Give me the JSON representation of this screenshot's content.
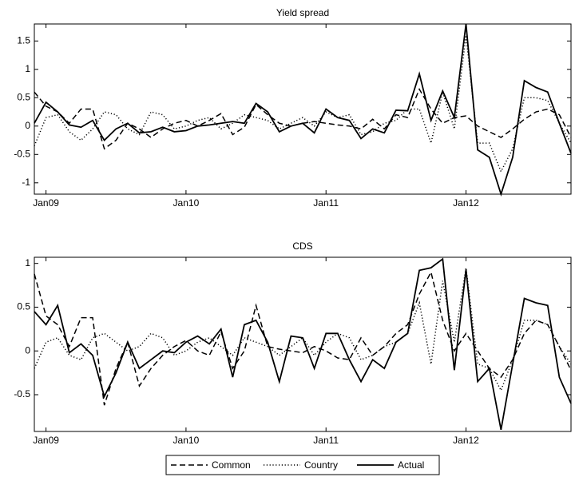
{
  "chart_data": [
    {
      "type": "line",
      "title": "Yield spread",
      "categories": [
        null,
        "Jan09",
        null,
        null,
        null,
        null,
        null,
        null,
        null,
        null,
        null,
        null,
        null,
        "Jan10",
        null,
        null,
        null,
        null,
        null,
        null,
        null,
        null,
        null,
        null,
        null,
        "Jan11",
        null,
        null,
        null,
        null,
        null,
        null,
        null,
        null,
        null,
        null,
        null,
        "Jan12",
        null,
        null,
        null,
        null,
        null,
        null,
        null,
        null,
        null
      ],
      "ylim": [
        -1.2,
        1.8
      ],
      "yticks": [
        -1,
        -0.5,
        0,
        0.5,
        1,
        1.5
      ],
      "series": [
        {
          "style": "dashed",
          "color": "#000000",
          "values": [
            0.6,
            0.35,
            0.25,
            0.05,
            0.3,
            0.3,
            -0.4,
            -0.25,
            0.05,
            -0.05,
            -0.2,
            -0.05,
            0.05,
            0.1,
            0.0,
            0.1,
            0.22,
            -0.15,
            -0.02,
            0.38,
            0.2,
            0.05,
            0.0,
            0.05,
            0.08,
            0.05,
            0.02,
            0.0,
            -0.05,
            0.12,
            -0.05,
            0.2,
            0.15,
            0.65,
            0.3,
            0.05,
            0.15,
            0.18,
            0.0,
            -0.1,
            -0.2,
            -0.05,
            0.12,
            0.25,
            0.3,
            0.2,
            -0.2
          ]
        },
        {
          "style": "dotted",
          "color": "#000000",
          "values": [
            -0.35,
            0.15,
            0.2,
            -0.1,
            -0.25,
            -0.05,
            0.25,
            0.2,
            -0.05,
            -0.15,
            0.25,
            0.2,
            -0.05,
            0.0,
            0.1,
            0.15,
            -0.05,
            0.05,
            0.2,
            0.15,
            0.1,
            -0.05,
            0.05,
            0.15,
            0.0,
            0.25,
            0.15,
            0.2,
            -0.15,
            -0.1,
            0.05,
            0.1,
            0.3,
            0.3,
            -0.3,
            0.6,
            -0.05,
            1.6,
            -0.3,
            -0.3,
            -0.8,
            -0.4,
            0.5,
            0.5,
            0.45,
            0.05,
            -0.3
          ]
        },
        {
          "style": "solid",
          "color": "#000000",
          "values": [
            0.05,
            0.42,
            0.25,
            0.02,
            -0.02,
            0.1,
            -0.25,
            -0.05,
            0.05,
            -0.12,
            -0.1,
            -0.02,
            -0.1,
            -0.08,
            0.0,
            0.02,
            0.05,
            0.08,
            0.05,
            0.4,
            0.25,
            -0.1,
            0.0,
            0.05,
            -0.12,
            0.3,
            0.15,
            0.1,
            -0.22,
            -0.05,
            -0.12,
            0.28,
            0.27,
            0.92,
            0.1,
            0.62,
            0.15,
            1.8,
            -0.42,
            -0.55,
            -1.2,
            -0.55,
            0.8,
            0.68,
            0.6,
            0.05,
            -0.48
          ]
        }
      ]
    },
    {
      "type": "line",
      "title": "CDS",
      "categories": [
        null,
        "Jan09",
        null,
        null,
        null,
        null,
        null,
        null,
        null,
        null,
        null,
        null,
        null,
        "Jan10",
        null,
        null,
        null,
        null,
        null,
        null,
        null,
        null,
        null,
        null,
        null,
        "Jan11",
        null,
        null,
        null,
        null,
        null,
        null,
        null,
        null,
        null,
        null,
        null,
        "Jan12",
        null,
        null,
        null,
        null,
        null,
        null,
        null,
        null,
        null
      ],
      "ylim": [
        -0.92,
        1.07
      ],
      "yticks": [
        -0.5,
        0,
        0.5,
        1
      ],
      "series": [
        {
          "name": "Common",
          "style": "dashed",
          "color": "#000000",
          "values": [
            0.88,
            0.4,
            0.3,
            0.05,
            0.38,
            0.38,
            -0.62,
            -0.2,
            0.1,
            -0.4,
            -0.2,
            -0.05,
            0.05,
            0.12,
            0.0,
            -0.05,
            0.22,
            -0.2,
            0.0,
            0.52,
            0.05,
            0.02,
            0.0,
            -0.02,
            0.05,
            0.0,
            -0.08,
            -0.1,
            0.15,
            -0.05,
            0.05,
            0.2,
            0.3,
            0.65,
            0.9,
            0.35,
            0.0,
            0.2,
            0.0,
            -0.2,
            -0.3,
            -0.1,
            0.2,
            0.35,
            0.3,
            0.05,
            -0.22
          ]
        },
        {
          "name": "Country",
          "style": "dotted",
          "color": "#000000",
          "values": [
            -0.2,
            0.1,
            0.15,
            -0.05,
            -0.1,
            0.15,
            0.2,
            0.1,
            0.0,
            0.05,
            0.2,
            0.15,
            -0.05,
            0.0,
            0.1,
            0.15,
            0.05,
            -0.05,
            0.15,
            0.1,
            0.05,
            -0.05,
            0.05,
            0.15,
            -0.05,
            0.1,
            0.2,
            0.15,
            -0.1,
            -0.05,
            0.05,
            0.1,
            0.2,
            0.55,
            -0.15,
            0.8,
            0.1,
            0.95,
            -0.15,
            -0.2,
            -0.45,
            -0.1,
            0.35,
            0.35,
            0.3,
            0.05,
            -0.15
          ]
        },
        {
          "name": "Actual",
          "style": "solid",
          "color": "#000000",
          "values": [
            0.45,
            0.3,
            0.52,
            -0.02,
            0.08,
            -0.05,
            -0.52,
            -0.25,
            0.1,
            -0.2,
            -0.1,
            0.0,
            -0.02,
            0.1,
            0.17,
            0.08,
            0.25,
            -0.3,
            0.3,
            0.35,
            0.1,
            -0.35,
            0.17,
            0.15,
            -0.2,
            0.2,
            0.2,
            -0.1,
            -0.35,
            -0.1,
            -0.2,
            0.1,
            0.2,
            0.92,
            0.95,
            1.05,
            -0.22,
            0.93,
            -0.35,
            -0.2,
            -0.9,
            -0.15,
            0.6,
            0.55,
            0.52,
            -0.3,
            -0.6
          ]
        }
      ]
    }
  ]
}
